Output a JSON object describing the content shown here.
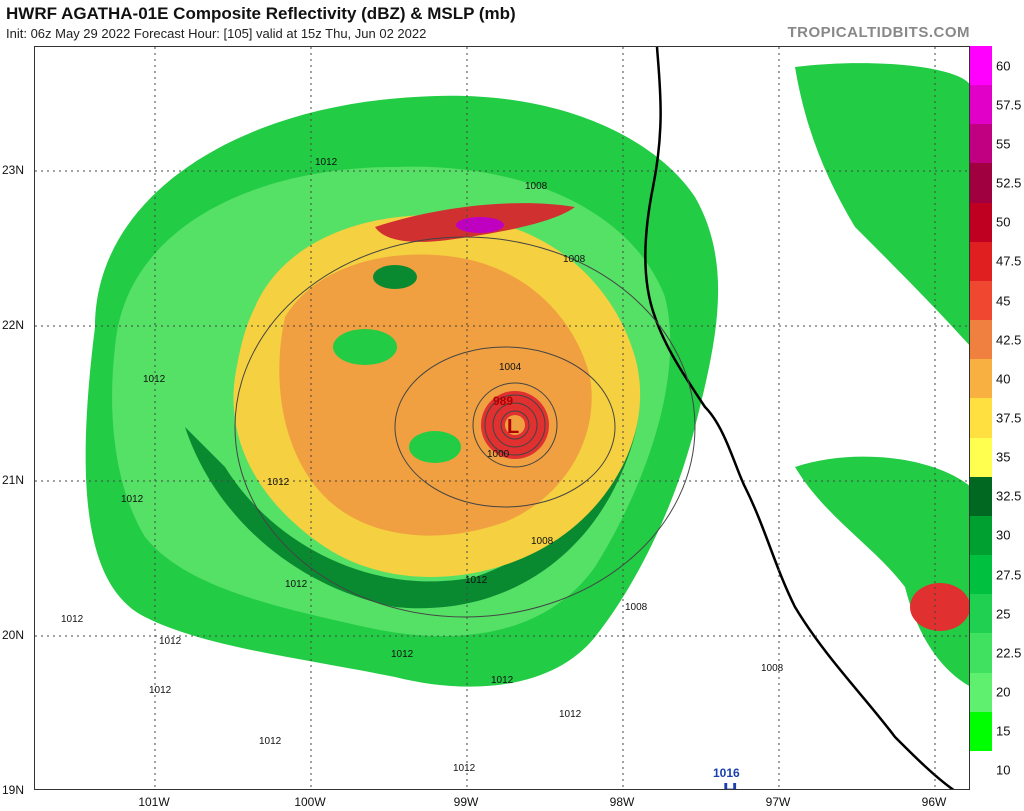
{
  "header": {
    "title": "HWRF AGATHA-01E Composite Reflectivity (dBZ) & MSLP (mb)",
    "subtitle": "Init: 06z May 29 2022   Forecast Hour: [105]   valid at 15z Thu, Jun 02 2022",
    "brand": "TROPICALTIDBITS.COM"
  },
  "map": {
    "lat_labels": [
      "23N",
      "22N",
      "21N",
      "20N",
      "19N"
    ],
    "lon_labels": [
      "101W",
      "100W",
      "99W",
      "98W",
      "97W",
      "96W"
    ],
    "low_center": {
      "letter": "L",
      "pressure": "989"
    },
    "high_center": {
      "letter": "H",
      "pressure": "1016"
    },
    "isobar_labels": [
      "1012",
      "1008",
      "1004",
      "1000",
      "1008",
      "1012",
      "1012",
      "1012",
      "1012",
      "1012",
      "1012",
      "1012",
      "1012",
      "1012",
      "1012",
      "1008",
      "1008",
      "1008",
      "1012",
      "1012",
      "1012"
    ]
  },
  "colorbar": {
    "labels": [
      "60",
      "57.5",
      "55",
      "52.5",
      "50",
      "47.5",
      "45",
      "42.5",
      "40",
      "37.5",
      "35",
      "32.5",
      "30",
      "27.5",
      "25",
      "22.5",
      "20",
      "15",
      "10"
    ],
    "colors": [
      "#ff00ff",
      "#e000c8",
      "#c00080",
      "#a00040",
      "#c00020",
      "#e02020",
      "#f04830",
      "#f08040",
      "#f8b040",
      "#ffe040",
      "#ffff50",
      "#006820",
      "#00a030",
      "#00c040",
      "#20d050",
      "#40e060",
      "#60f070",
      "#00ff00",
      "#ffffff"
    ]
  }
}
